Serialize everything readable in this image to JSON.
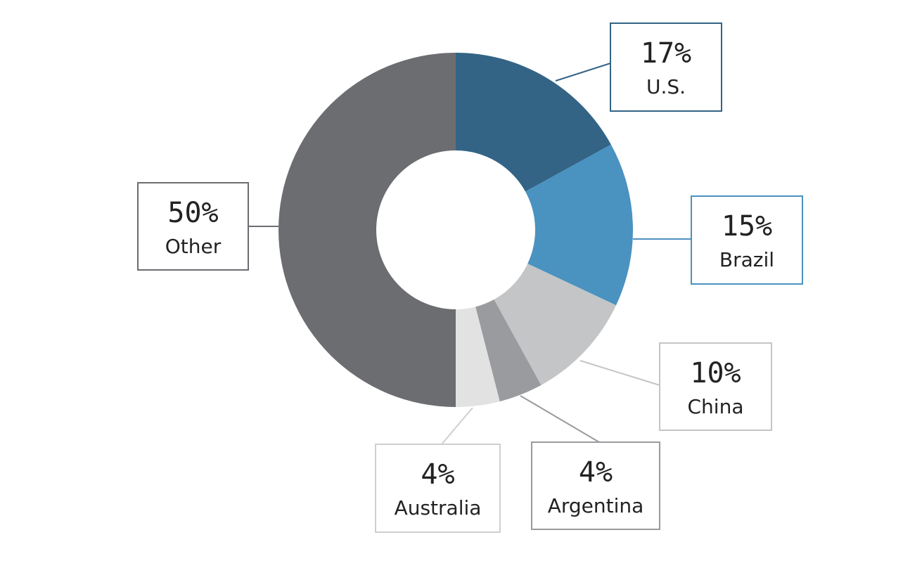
{
  "chart_data": {
    "type": "donut",
    "categories": [
      "U.S.",
      "Brazil",
      "China",
      "Argentina",
      "Australia",
      "Other"
    ],
    "values": [
      17,
      15,
      10,
      4,
      4,
      50
    ],
    "value_labels": [
      "17%",
      "15%",
      "10%",
      "4%",
      "4%",
      "50%"
    ],
    "colors": [
      "#336486",
      "#4a92c0",
      "#c4c5c7",
      "#9a9b9e",
      "#e2e2e2",
      "#6c6d71"
    ]
  }
}
